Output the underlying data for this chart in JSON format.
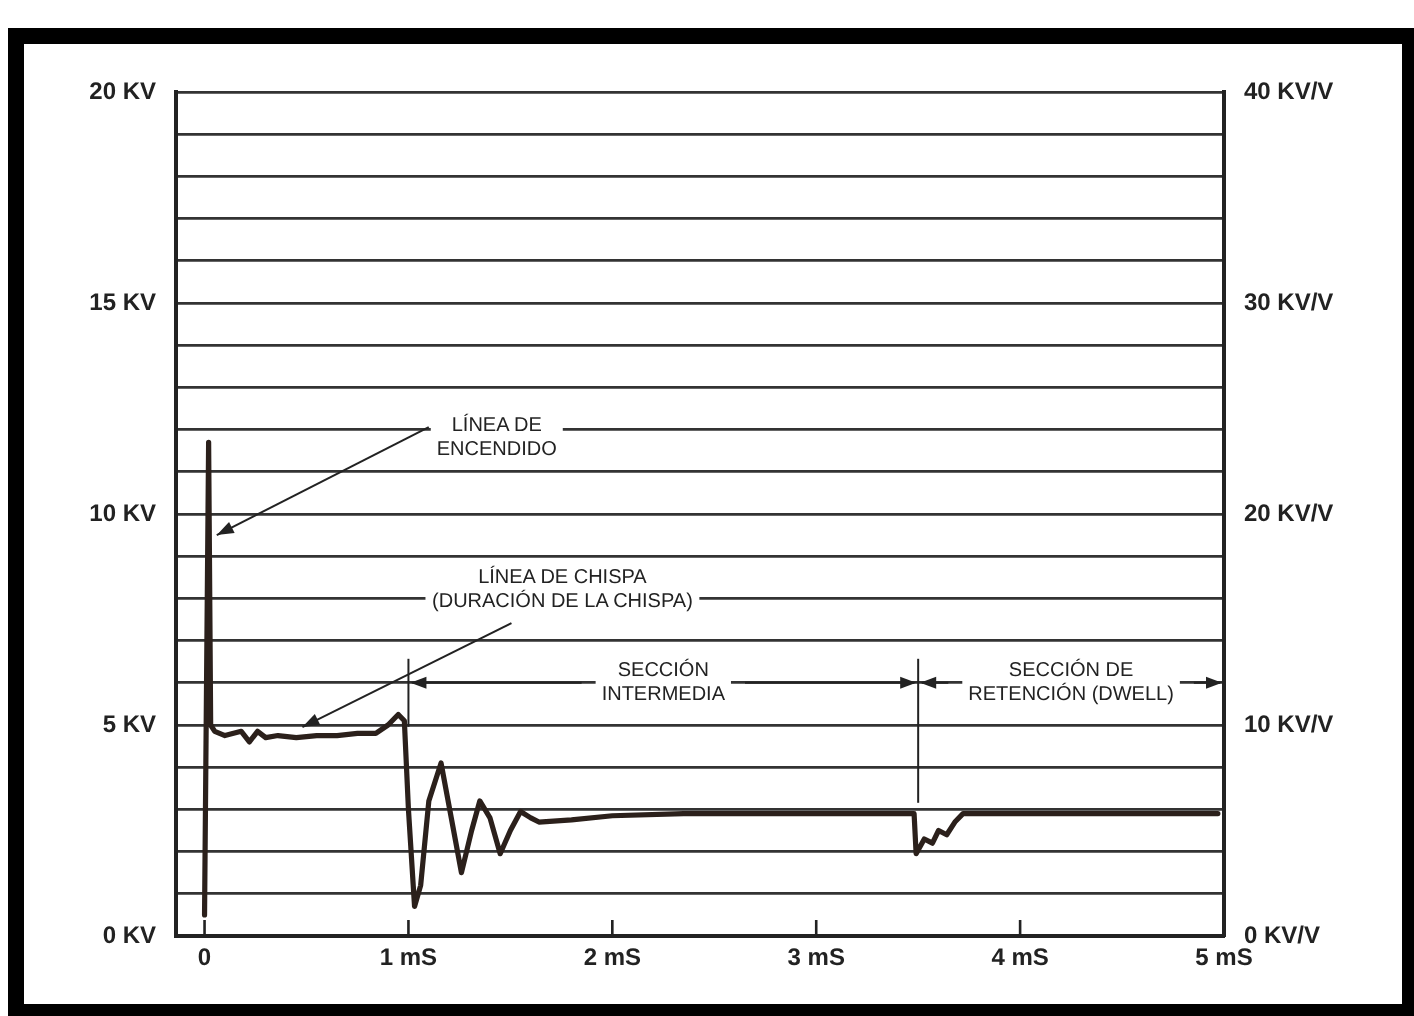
{
  "chart_data": {
    "type": "line",
    "x": [
      0,
      0.02,
      0.03,
      0.05,
      0.1,
      0.18,
      0.22,
      0.26,
      0.3,
      0.36,
      0.45,
      0.55,
      0.65,
      0.75,
      0.84,
      0.9,
      0.95,
      0.98,
      1.0,
      1.03,
      1.06,
      1.1,
      1.16,
      1.21,
      1.26,
      1.31,
      1.35,
      1.4,
      1.45,
      1.5,
      1.55,
      1.6,
      1.64,
      1.8,
      2.0,
      2.35,
      3.0,
      3.48,
      3.49,
      3.53,
      3.57,
      3.6,
      3.64,
      3.68,
      3.72,
      4.0,
      4.97
    ],
    "series": [
      {
        "color": "#2b201b",
        "values": [
          0.5,
          11.7,
          5.0,
          4.85,
          4.75,
          4.85,
          4.6,
          4.85,
          4.7,
          4.75,
          4.7,
          4.75,
          4.75,
          4.8,
          4.8,
          5.0,
          5.25,
          5.1,
          3.0,
          0.7,
          1.2,
          3.2,
          4.1,
          2.8,
          1.5,
          2.5,
          3.2,
          2.8,
          1.95,
          2.5,
          2.95,
          2.8,
          2.7,
          2.75,
          2.85,
          2.9,
          2.9,
          2.9,
          1.95,
          2.3,
          2.2,
          2.5,
          2.4,
          2.7,
          2.9,
          2.9,
          2.9
        ]
      }
    ],
    "xlim": [
      -0.14,
      5
    ],
    "xticks": [
      0,
      {
        "value": 1,
        "label": "1 mS"
      },
      {
        "value": 2,
        "label": "2 mS"
      },
      {
        "value": 3,
        "label": "3 mS"
      },
      {
        "value": 4,
        "label": "4 mS"
      },
      {
        "value": 5,
        "label": "5 mS"
      }
    ],
    "ylim": [
      0,
      20
    ],
    "yticks": [
      {
        "value": 0,
        "label": "0 KV"
      },
      {
        "value": 1,
        "label": null
      },
      {
        "value": 2,
        "label": null
      },
      {
        "value": 3,
        "label": null
      },
      {
        "value": 4,
        "label": null
      },
      {
        "value": 5,
        "label": "5 KV"
      },
      {
        "value": 6,
        "label": null
      },
      {
        "value": 7,
        "label": null
      },
      {
        "value": 8,
        "label": null
      },
      {
        "value": 9,
        "label": null
      },
      {
        "value": 10,
        "label": "10 KV"
      },
      {
        "value": 11,
        "label": null
      },
      {
        "value": 12,
        "label": null
      },
      {
        "value": 13,
        "label": null
      },
      {
        "value": 14,
        "label": null
      },
      {
        "value": 15,
        "label": "15 KV"
      },
      {
        "value": 16,
        "label": null
      },
      {
        "value": 17,
        "label": null
      },
      {
        "value": 18,
        "label": null
      },
      {
        "value": 19,
        "label": null
      },
      {
        "value": 20,
        "label": "20 KV"
      }
    ],
    "y2lim": [
      0,
      40
    ],
    "y2ticks": [
      {
        "value": 0,
        "label": "0 KV/V"
      },
      {
        "value": 10,
        "label": "10 KV/V"
      },
      {
        "value": 20,
        "label": "20 KV/V"
      },
      {
        "value": 30,
        "label": "30 KV/V"
      },
      {
        "value": 40,
        "label": "40 KV/V"
      }
    ],
    "grid": "y",
    "marker": "none",
    "line_style": "solid",
    "legend": false,
    "annotations": [
      {
        "text": "LÍNEA DE\nENCENDIDO",
        "x": 0.06,
        "y": 9.5
      },
      {
        "text": "LÍNEA DE CHISPA\n(DURACIÓN DE LA CHISPA)",
        "x": 0.48,
        "y": 4.95
      }
    ],
    "ref_lines": [
      {
        "axis": "x",
        "value": 1,
        "label": "SECCIÓN\nINTERMEDIA"
      },
      {
        "axis": "x",
        "value": 3.5,
        "label": "SECCIÓN DE\nRETENCIÓN (DWELL)"
      }
    ]
  }
}
